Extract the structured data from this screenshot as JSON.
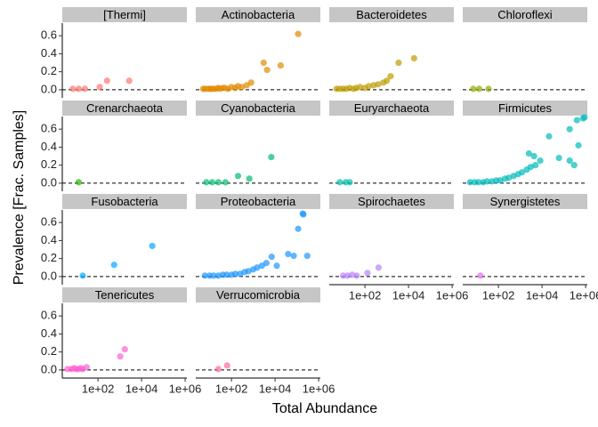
{
  "chart_data": {
    "type": "scatter",
    "facet": true,
    "xlabel": "Total Abundance",
    "ylabel": "Prevalence [Frac. Samples]",
    "xlog": true,
    "xlim": [
      2.3,
      1200000
    ],
    "xticks": [
      {
        "value": 100,
        "label": "1e+02"
      },
      {
        "value": 10000,
        "label": "1e+04"
      },
      {
        "value": 1000000,
        "label": "1e+06"
      }
    ],
    "ylim": [
      -0.09,
      0.74
    ],
    "yticks": [
      {
        "value": 0,
        "label": "0.0"
      },
      0.2,
      0.4,
      0.6
    ],
    "hline": 0,
    "series": [
      {
        "name": "[Thermi]",
        "color": "#F8766D",
        "x": [
          7,
          13,
          25,
          120,
          260,
          2700
        ],
        "values": [
          0.01,
          0.01,
          0.01,
          0.03,
          0.1,
          0.1
        ]
      },
      {
        "name": "Actinobacteria",
        "color": "#E18A00",
        "x": [
          5,
          6,
          8,
          10,
          12,
          15,
          20,
          25,
          30,
          40,
          50,
          70,
          100,
          150,
          200,
          300,
          500,
          800,
          3000,
          4300,
          18000,
          115000
        ],
        "values": [
          0.01,
          0.01,
          0.01,
          0.01,
          0.01,
          0.01,
          0.01,
          0.02,
          0.01,
          0.02,
          0.02,
          0.01,
          0.03,
          0.02,
          0.04,
          0.03,
          0.05,
          0.08,
          0.3,
          0.22,
          0.27,
          0.62
        ]
      },
      {
        "name": "Bacteroidetes",
        "color": "#BE9C00",
        "x": [
          5,
          7,
          10,
          14,
          20,
          30,
          40,
          60,
          100,
          150,
          250,
          400,
          700,
          1000,
          1500,
          3500,
          18000
        ],
        "values": [
          0.01,
          0.01,
          0.01,
          0.01,
          0.02,
          0.01,
          0.02,
          0.03,
          0.02,
          0.04,
          0.05,
          0.06,
          0.08,
          0.1,
          0.15,
          0.3,
          0.35
        ]
      },
      {
        "name": "Chloroflexi",
        "color": "#8CAB00",
        "x": [
          7,
          13,
          35
        ],
        "values": [
          0.01,
          0.01,
          0.01
        ]
      },
      {
        "name": "Crenarchaeota",
        "color": "#24B700",
        "x": [
          13
        ],
        "values": [
          0.01
        ]
      },
      {
        "name": "Cyanobacteria",
        "color": "#00BE70",
        "x": [
          7,
          13,
          25,
          53,
          200,
          660,
          6700
        ],
        "values": [
          0.01,
          0.01,
          0.01,
          0.01,
          0.08,
          0.05,
          0.29
        ]
      },
      {
        "name": "Euryarchaeota",
        "color": "#00C1AB",
        "x": [
          7,
          13,
          20
        ],
        "values": [
          0.01,
          0.01,
          0.01
        ]
      },
      {
        "name": "Firmicutes",
        "color": "#00BBBB",
        "x": [
          5,
          8,
          12,
          20,
          30,
          50,
          80,
          120,
          200,
          300,
          500,
          800,
          1200,
          2000,
          3000,
          2500,
          4300,
          5000,
          8300,
          21000,
          60000,
          186000,
          186000,
          300000,
          470000,
          400000,
          760000,
          900000
        ],
        "values": [
          0.01,
          0.01,
          0.01,
          0.01,
          0.02,
          0.02,
          0.03,
          0.03,
          0.05,
          0.06,
          0.08,
          0.1,
          0.12,
          0.15,
          0.18,
          0.33,
          0.3,
          0.2,
          0.25,
          0.52,
          0.28,
          0.25,
          0.6,
          0.2,
          0.42,
          0.7,
          0.72,
          0.73
        ]
      },
      {
        "name": "Fusobacteria",
        "color": "#00A9FF",
        "x": [
          20,
          550,
          31000
        ],
        "values": [
          0.01,
          0.13,
          0.34
        ]
      },
      {
        "name": "Proteobacteria",
        "color": "#1E96FF",
        "x": [
          6,
          10,
          15,
          25,
          40,
          60,
          100,
          150,
          250,
          400,
          600,
          1000,
          1500,
          2500,
          4000,
          7000,
          12000,
          40000,
          72000,
          115000,
          186000,
          200000,
          300000
        ],
        "values": [
          0.01,
          0.01,
          0.01,
          0.01,
          0.02,
          0.02,
          0.02,
          0.03,
          0.03,
          0.05,
          0.06,
          0.08,
          0.1,
          0.12,
          0.15,
          0.22,
          0.12,
          0.25,
          0.23,
          0.53,
          0.7,
          0.69,
          0.23
        ]
      },
      {
        "name": "Spirochaetes",
        "color": "#B983FF",
        "x": [
          10,
          16,
          26,
          42,
          130,
          420
        ],
        "values": [
          0.01,
          0.01,
          0.02,
          0.01,
          0.04,
          0.1
        ]
      },
      {
        "name": "Synergistetes",
        "color": "#E76BF3",
        "x": [
          15
        ],
        "values": [
          0.01
        ]
      },
      {
        "name": "Tenericutes",
        "color": "#FD61D1",
        "x": [
          4,
          6,
          8,
          10,
          13,
          16,
          20,
          30,
          1050,
          1700
        ],
        "values": [
          0.01,
          0.01,
          0.02,
          0.01,
          0.01,
          0.02,
          0.01,
          0.03,
          0.15,
          0.23
        ]
      },
      {
        "name": "Verrucomicrobia",
        "color": "#FF67A4",
        "x": [
          25,
          63
        ],
        "values": [
          0.01,
          0.05
        ]
      }
    ]
  }
}
